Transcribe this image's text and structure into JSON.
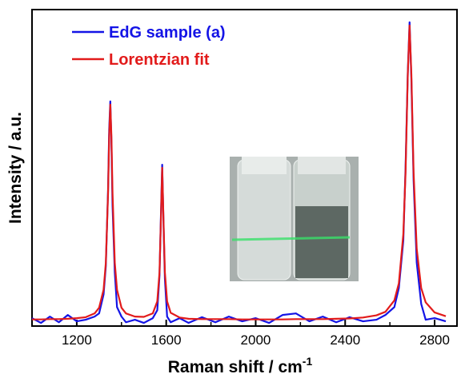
{
  "chart_data": {
    "type": "line",
    "xlabel": "Raman shift / cm",
    "xlabel_superscript": "-1",
    "ylabel": "Intensity / a.u.",
    "xlim": [
      1000,
      2900
    ],
    "ylim": [
      0,
      1
    ],
    "xticks": [
      1200,
      1600,
      2000,
      2400,
      2800
    ],
    "xminorticks": [
      1000,
      1400,
      1800,
      2200,
      2600
    ],
    "legend": "upper left",
    "x": [
      1000,
      1040,
      1080,
      1120,
      1160,
      1200,
      1240,
      1280,
      1300,
      1320,
      1330,
      1340,
      1345,
      1350,
      1355,
      1360,
      1370,
      1380,
      1400,
      1420,
      1460,
      1500,
      1540,
      1560,
      1570,
      1576,
      1582,
      1588,
      1594,
      1604,
      1620,
      1660,
      1700,
      1760,
      1820,
      1880,
      1940,
      2000,
      2060,
      2120,
      2180,
      2240,
      2300,
      2360,
      2420,
      2480,
      2540,
      2580,
      2620,
      2640,
      2660,
      2670,
      2680,
      2688,
      2696,
      2706,
      2720,
      2740,
      2760,
      2800,
      2850
    ],
    "series": [
      {
        "name": "EdG sample (a)",
        "color": "#1414e6",
        "values": [
          0.025,
          0.01,
          0.03,
          0.012,
          0.035,
          0.015,
          0.02,
          0.03,
          0.04,
          0.1,
          0.19,
          0.43,
          0.62,
          0.71,
          0.58,
          0.38,
          0.17,
          0.06,
          0.03,
          0.012,
          0.02,
          0.01,
          0.025,
          0.05,
          0.16,
          0.34,
          0.51,
          0.32,
          0.15,
          0.03,
          0.012,
          0.025,
          0.01,
          0.028,
          0.012,
          0.03,
          0.015,
          0.025,
          0.01,
          0.035,
          0.04,
          0.015,
          0.03,
          0.012,
          0.028,
          0.015,
          0.02,
          0.035,
          0.06,
          0.12,
          0.27,
          0.5,
          0.8,
          0.96,
          0.78,
          0.46,
          0.2,
          0.07,
          0.02,
          0.025,
          0.015
        ]
      },
      {
        "name": "Lorentzian fit",
        "color": "#e21b1b",
        "values": [
          0.021,
          0.021,
          0.022,
          0.022,
          0.023,
          0.025,
          0.028,
          0.04,
          0.058,
          0.115,
          0.2,
          0.42,
          0.6,
          0.7,
          0.6,
          0.42,
          0.2,
          0.115,
          0.058,
          0.04,
          0.03,
          0.029,
          0.04,
          0.078,
          0.17,
          0.33,
          0.5,
          0.33,
          0.17,
          0.078,
          0.042,
          0.027,
          0.023,
          0.022,
          0.022,
          0.022,
          0.021,
          0.021,
          0.021,
          0.021,
          0.022,
          0.022,
          0.022,
          0.023,
          0.024,
          0.027,
          0.034,
          0.045,
          0.081,
          0.135,
          0.29,
          0.485,
          0.796,
          0.95,
          0.796,
          0.485,
          0.244,
          0.12,
          0.075,
          0.043,
          0.031
        ]
      }
    ]
  }
}
